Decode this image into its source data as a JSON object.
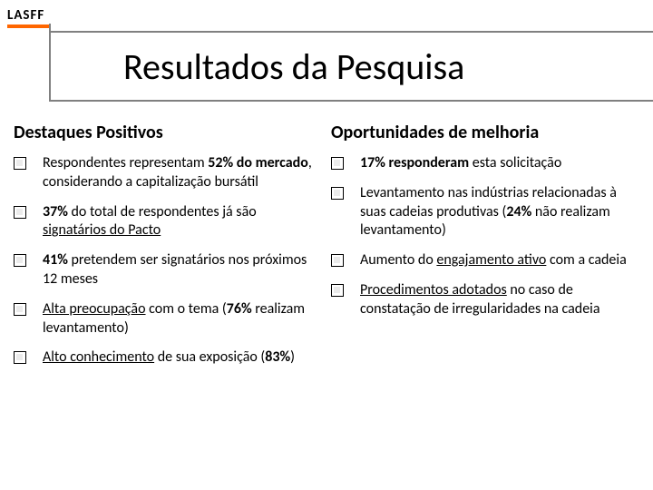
{
  "logo_text": "LASFF",
  "logo_bar_color": "#ff6600",
  "title": "Resultados da Pesquisa",
  "left": {
    "heading": "Destaques Positivos",
    "items": [
      "Respondentes representam <b>52% do mercado</b>, considerando a capitalização bursátil",
      "<b>37%</b> do total de respondentes já são <span class=\"u\">signatários do Pacto</span>",
      "<b>41%</b> pretendem ser signatários nos próximos 12 meses",
      "<span class=\"u\">Alta preocupação</span> com o tema (<b>76%</b> realizam levantamento)",
      "<span class=\"u\">Alto conhecimento</span> de sua exposição (<b>83%</b>)"
    ]
  },
  "right": {
    "heading": "Oportunidades de melhoria",
    "items": [
      "<b>17% responderam</b> esta solicitação",
      "Levantamento nas indústrias relacionadas à suas cadeias produtivas (<b>24%</b> não realizam levantamento)",
      "Aumento do <span class=\"u\">engajamento ativo</span> com a cadeia",
      "<span class=\"u\">Procedimentos adotados</span> no caso de constatação de irregularidades na cadeia"
    ]
  },
  "colors": {
    "border_gray": "#808080",
    "background": "#ffffff",
    "text": "#000000"
  }
}
